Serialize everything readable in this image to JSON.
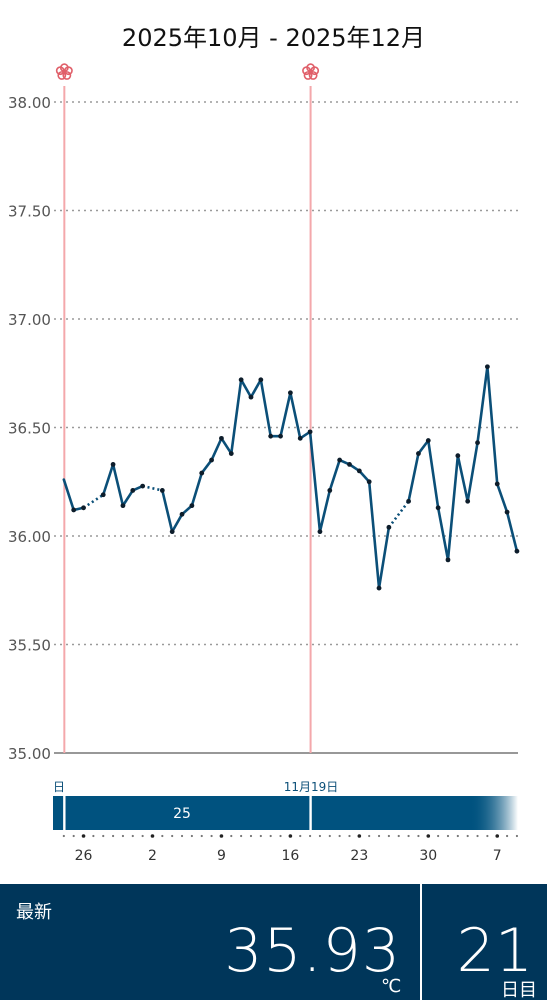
{
  "title": "2025年10月 - 2025年12月",
  "chart_data": {
    "type": "line",
    "ylim": [
      35.0,
      38.0
    ],
    "y_ticks": [
      "35.00",
      "35.50",
      "36.00",
      "36.50",
      "37.00",
      "37.50",
      "38.00"
    ],
    "y_tick_values": [
      35.0,
      35.5,
      36.0,
      36.5,
      37.0,
      37.5,
      38.0
    ],
    "x_range": [
      -1.1,
      45.8
    ],
    "x_ticks": [
      {
        "index": 2,
        "label": "26"
      },
      {
        "index": 9,
        "label": "2"
      },
      {
        "index": 16,
        "label": "9"
      },
      {
        "index": 23,
        "label": "16"
      },
      {
        "index": 30,
        "label": "23"
      },
      {
        "index": 37,
        "label": "30"
      },
      {
        "index": 44,
        "label": "7"
      }
    ],
    "series": [
      {
        "values": [
          36.26,
          36.12,
          36.13,
          null,
          36.19,
          36.33,
          36.14,
          36.21,
          36.23,
          null,
          36.21,
          36.02,
          36.1,
          36.14,
          36.29,
          36.35,
          36.45,
          36.38,
          36.72,
          36.64,
          36.72,
          36.46,
          36.46,
          36.66,
          36.45,
          36.48,
          36.02,
          36.21,
          36.35,
          36.33,
          36.3,
          36.25,
          35.76,
          36.04,
          null,
          36.16,
          36.38,
          36.44,
          36.13,
          35.89,
          36.37,
          36.16,
          36.43,
          36.78,
          36.24,
          36.11,
          35.93
        ],
        "color": "#0b4f78"
      }
    ],
    "cycle_markers": [
      0,
      25
    ],
    "cycle_label": "25",
    "cycle_date_label": "11月19日",
    "cycle_edge_label": "日"
  },
  "latest": {
    "label": "最新",
    "value": "35.93",
    "unit": "℃"
  },
  "cycle_day": {
    "value": "21",
    "unit": "日目"
  },
  "colors": {
    "line": "#0b4f78",
    "marker": "#f19ca0",
    "band": "#00527f",
    "footer": "#00365a"
  }
}
